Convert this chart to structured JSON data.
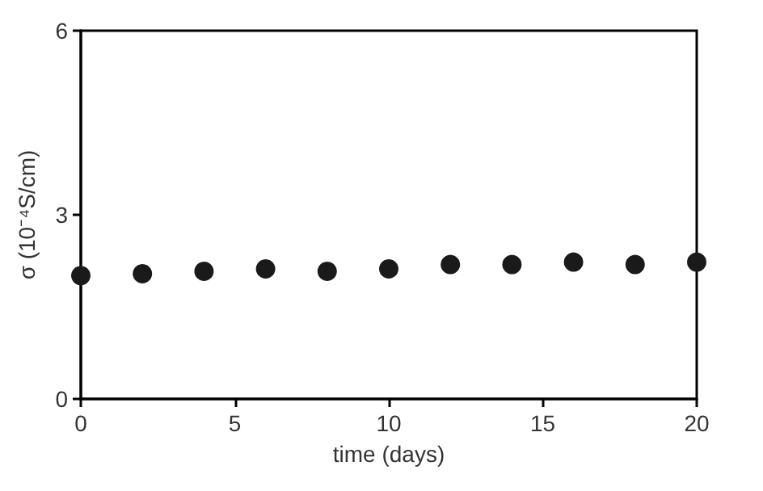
{
  "chart_data": {
    "type": "scatter",
    "xlabel": "time (days)",
    "ylabel": "σ (10⁻⁴S/cm)",
    "x": [
      0,
      2,
      4,
      6,
      8,
      10,
      12,
      14,
      16,
      18,
      20
    ],
    "series": [
      {
        "color": "#1a1a1a",
        "values": [
          2.01,
          2.04,
          2.08,
          2.12,
          2.08,
          2.12,
          2.19,
          2.19,
          2.23,
          2.19,
          2.23
        ]
      }
    ],
    "xlim": [
      0,
      20
    ],
    "xticks": [
      0,
      5,
      10,
      15,
      20
    ],
    "ylim": [
      0,
      6
    ],
    "yticks": [
      0,
      3,
      6
    ],
    "grid": false,
    "marker": "circle"
  }
}
